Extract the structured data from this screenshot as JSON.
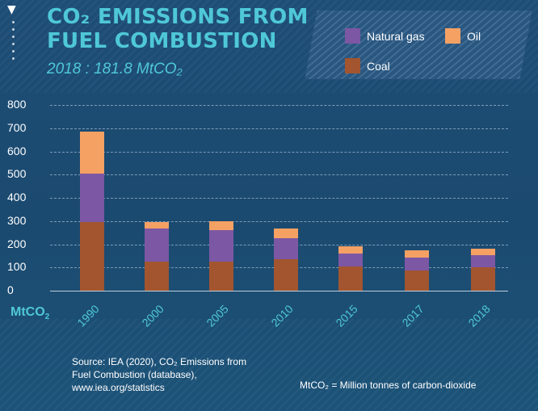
{
  "header": {
    "title": "CO₂ EMISSIONS FROM FUEL COMBUSTION",
    "subtitle": "2018 : 181.8 MtCO₂",
    "unit_label": "MtCO",
    "unit_sub": "2"
  },
  "footer": {
    "source": "Source: IEA (2020), CO₂ Emissions from Fuel Combustion (database), www.iea.org/statistics",
    "note": "MtCO₂ = Million tonnes of carbon-dioxide"
  },
  "colors": {
    "coal": "#a2552f",
    "natural_gas": "#7c57a4",
    "oil": "#f5a164",
    "accent": "#4fc8d6"
  },
  "chart_data": {
    "type": "bar",
    "stacked": true,
    "title": "CO₂ EMISSIONS FROM FUEL COMBUSTION",
    "subtitle": "2018 : 181.8 MtCO₂",
    "xlabel": "",
    "ylabel": "MtCO₂",
    "ylim": [
      0,
      800
    ],
    "yticks": [
      "0",
      "100",
      "200",
      "300",
      "400",
      "500",
      "600",
      "700",
      "800"
    ],
    "grid": true,
    "legend_position": "top-right",
    "legend": [
      "Natural gas",
      "Oil",
      "Coal"
    ],
    "categories": [
      "1990",
      "2000",
      "2005",
      "2010",
      "2015",
      "2017",
      "2018"
    ],
    "series": [
      {
        "name": "Coal",
        "values": [
          295,
          125,
          125,
          135,
          105,
          88,
          100
        ]
      },
      {
        "name": "Natural gas",
        "values": [
          210,
          142,
          135,
          92,
          55,
          55,
          52
        ]
      },
      {
        "name": "Oil",
        "values": [
          180,
          30,
          38,
          40,
          32,
          30,
          30
        ]
      }
    ]
  }
}
